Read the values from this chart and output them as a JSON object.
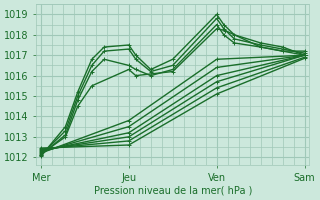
{
  "bg_color": "#cce8dc",
  "grid_color": "#a0c8b8",
  "line_color": "#1a6e2a",
  "title": "Pression niveau de la mer( hPa )",
  "ylabel_values": [
    1012,
    1013,
    1014,
    1015,
    1016,
    1017,
    1018,
    1019
  ],
  "xlabels": [
    "Mer",
    "Jeu",
    "Ven",
    "Sam"
  ],
  "xtick_pos": [
    0,
    1,
    2,
    3
  ],
  "xlim": [
    -0.05,
    3.05
  ],
  "ylim": [
    1011.6,
    1019.5
  ],
  "bump_lines": [
    {
      "x": [
        0,
        0.28,
        0.42,
        0.58,
        0.72,
        1.0,
        1.08,
        1.25,
        1.5,
        2.0,
        2.08,
        2.2,
        2.5,
        2.75,
        3.0
      ],
      "y": [
        1012.05,
        1013.5,
        1015.2,
        1016.8,
        1017.4,
        1017.5,
        1017.0,
        1016.3,
        1016.8,
        1019.0,
        1018.5,
        1018.0,
        1017.6,
        1017.4,
        1017.0
      ]
    },
    {
      "x": [
        0,
        0.28,
        0.42,
        0.58,
        0.72,
        1.0,
        1.08,
        1.25,
        1.5,
        2.0,
        2.08,
        2.2,
        2.5,
        2.75,
        3.0
      ],
      "y": [
        1012.1,
        1013.3,
        1015.0,
        1016.5,
        1017.2,
        1017.3,
        1016.8,
        1016.2,
        1016.5,
        1018.8,
        1018.3,
        1017.8,
        1017.5,
        1017.3,
        1017.1
      ]
    },
    {
      "x": [
        0,
        0.28,
        0.42,
        0.58,
        0.72,
        1.0,
        1.08,
        1.25,
        1.5,
        2.0,
        2.08,
        2.2,
        2.5,
        2.75,
        3.0
      ],
      "y": [
        1012.1,
        1013.1,
        1014.8,
        1016.2,
        1016.8,
        1016.5,
        1016.3,
        1016.0,
        1016.3,
        1018.5,
        1018.0,
        1017.6,
        1017.4,
        1017.2,
        1017.2
      ]
    },
    {
      "x": [
        0,
        0.28,
        0.42,
        0.58,
        1.0,
        1.08,
        1.5,
        2.0,
        2.1,
        2.5,
        3.0
      ],
      "y": [
        1012.15,
        1013.0,
        1014.5,
        1015.5,
        1016.3,
        1016.0,
        1016.2,
        1018.3,
        1018.2,
        1017.4,
        1017.0
      ]
    },
    {
      "x": [
        0,
        1.0,
        2.0,
        3.0
      ],
      "y": [
        1012.2,
        1013.8,
        1016.8,
        1017.0
      ]
    },
    {
      "x": [
        0,
        1.0,
        2.0,
        3.0
      ],
      "y": [
        1012.25,
        1013.5,
        1016.4,
        1017.0
      ]
    },
    {
      "x": [
        0,
        1.0,
        2.0,
        3.0
      ],
      "y": [
        1012.3,
        1013.2,
        1016.0,
        1017.0
      ]
    },
    {
      "x": [
        0,
        1.0,
        2.0,
        3.0
      ],
      "y": [
        1012.35,
        1013.0,
        1015.7,
        1017.0
      ]
    },
    {
      "x": [
        0,
        1.0,
        2.0,
        3.0
      ],
      "y": [
        1012.4,
        1012.8,
        1015.4,
        1016.9
      ]
    },
    {
      "x": [
        0,
        1.0,
        2.0,
        3.0
      ],
      "y": [
        1012.45,
        1012.6,
        1015.1,
        1016.85
      ]
    }
  ]
}
